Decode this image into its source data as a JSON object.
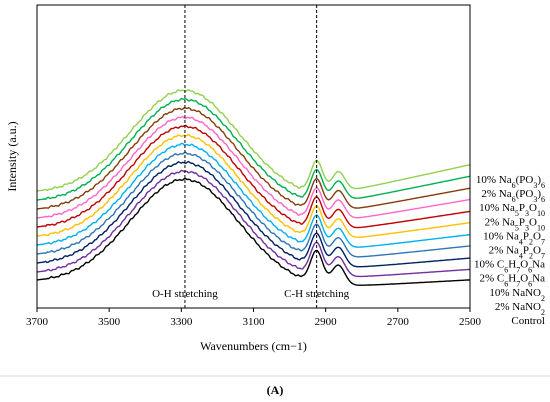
{
  "chart_data": {
    "type": "line",
    "xlabel": "Wavenumbers (cm−1)",
    "ylabel": "Intensity (a.u.)",
    "xlim": [
      3700,
      2500
    ],
    "x_reversed": true,
    "x_ticks": [
      3700,
      3500,
      3300,
      3100,
      2900,
      2700,
      2500
    ],
    "panel_label": "(A)",
    "grid": false,
    "legend_placement": "right, labels aligned to curve ends",
    "annotations": [
      {
        "text": "O-H stretching",
        "x": 3290
      },
      {
        "text": "C-H stretching",
        "x": 2925
      }
    ],
    "reference_lines_x": [
      3290,
      2925
    ],
    "series": [
      {
        "name": "Control",
        "label_parts": [
          "Control"
        ],
        "color": "#000000",
        "baseline": 0,
        "amp_oh": 112,
        "amp_ch": 34,
        "right_end": 58
      },
      {
        "name": "2% NaNO2",
        "label_parts": [
          "2% NaNO",
          {
            "sub": "2"
          }
        ],
        "color": "#7030a0",
        "baseline": 8,
        "amp_oh": 112,
        "amp_ch": 34,
        "right_end": 70
      },
      {
        "name": "10% NaNO2",
        "label_parts": [
          "10% NaNO",
          {
            "sub": "2"
          }
        ],
        "color": "#002060",
        "baseline": 17,
        "amp_oh": 112,
        "amp_ch": 34,
        "right_end": 81
      },
      {
        "name": "2% C6H7O6Na",
        "label_parts": [
          "2% C",
          {
            "sub": "6"
          },
          "H",
          {
            "sub": "7"
          },
          "O",
          {
            "sub": "6"
          },
          "Na"
        ],
        "color": "#2e75b6",
        "baseline": 26,
        "amp_oh": 112,
        "amp_ch": 34,
        "right_end": 96
      },
      {
        "name": "10% C6H7O6Na",
        "label_parts": [
          "10% C",
          {
            "sub": "6"
          },
          "H",
          {
            "sub": "7"
          },
          "O",
          {
            "sub": "6"
          },
          "Na"
        ],
        "color": "#00b0f0",
        "baseline": 35,
        "amp_oh": 112,
        "amp_ch": 34,
        "right_end": 107
      },
      {
        "name": "2% Na4P2O7",
        "label_parts": [
          "2% Na",
          {
            "sub": "4"
          },
          "P",
          {
            "sub": "2"
          },
          "O",
          {
            "sub": "7"
          }
        ],
        "color": "#ffc000",
        "baseline": 44,
        "amp_oh": 112,
        "amp_ch": 34,
        "right_end": 121
      },
      {
        "name": "10% Na4P2O7",
        "label_parts": [
          "10% Na",
          {
            "sub": "4"
          },
          "P",
          {
            "sub": "2"
          },
          "O",
          {
            "sub": "7"
          }
        ],
        "color": "#c00000",
        "baseline": 53,
        "amp_oh": 112,
        "amp_ch": 34,
        "right_end": 132
      },
      {
        "name": "2% Na5P3O10",
        "label_parts": [
          "2% Na",
          {
            "sub": "5"
          },
          "P",
          {
            "sub": "3"
          },
          "O",
          {
            "sub": "10"
          }
        ],
        "color": "#ff66cc",
        "baseline": 62,
        "amp_oh": 112,
        "amp_ch": 34,
        "right_end": 146
      },
      {
        "name": "10% Na5P3O10",
        "label_parts": [
          "10% Na",
          {
            "sub": "5"
          },
          "P",
          {
            "sub": "3"
          },
          "O",
          {
            "sub": "10"
          }
        ],
        "color": "#843c0c",
        "baseline": 71,
        "amp_oh": 112,
        "amp_ch": 34,
        "right_end": 157
      },
      {
        "name": "2% Na6(PO3)6",
        "label_parts": [
          "2% Na",
          {
            "sub": "6"
          },
          "(PO",
          {
            "sub": "3"
          },
          ")",
          {
            "sub": "6"
          }
        ],
        "color": "#00b050",
        "baseline": 80,
        "amp_oh": 112,
        "amp_ch": 34,
        "right_end": 171
      },
      {
        "name": "10% Na6(PO3)6",
        "label_parts": [
          "10% Na",
          {
            "sub": "6"
          },
          "(PO",
          {
            "sub": "3"
          },
          ")",
          {
            "sub": "6"
          }
        ],
        "color": "#92d050",
        "baseline": 89,
        "amp_oh": 112,
        "amp_ch": 34,
        "right_end": 183
      }
    ]
  }
}
